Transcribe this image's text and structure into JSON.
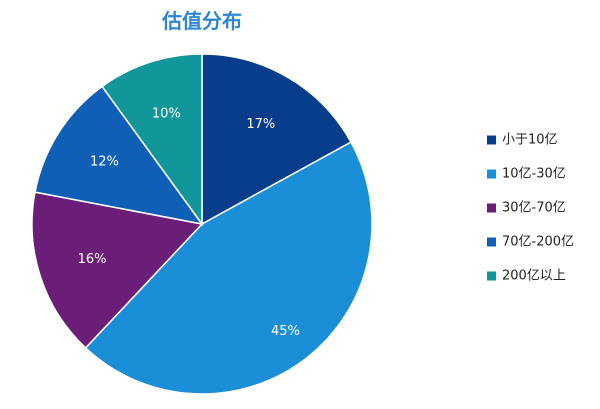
{
  "chart_data": {
    "type": "pie",
    "title": "估值分布",
    "title_color": "#2f86d0",
    "categories": [
      "小于10亿",
      "10亿-30亿",
      "30亿-70亿",
      "70亿-200亿",
      "200亿以上"
    ],
    "values": [
      17,
      45,
      16,
      12,
      10
    ],
    "data_labels": [
      "17%",
      "45%",
      "16%",
      "12%",
      "10%"
    ],
    "colors": [
      "#083d8c",
      "#1a8fd8",
      "#6a1e78",
      "#0f5fb7",
      "#11979a"
    ],
    "start_angle": "12 o'clock",
    "direction": "clockwise",
    "legend_position": "right"
  }
}
